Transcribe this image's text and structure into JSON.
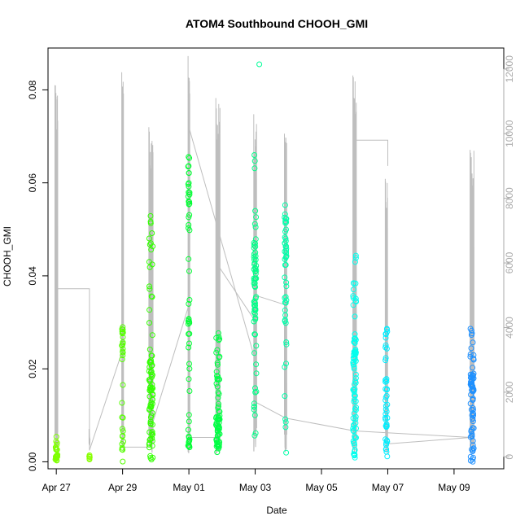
{
  "chart_data": {
    "type": "scatter",
    "title": "ATOM4 Southbound CHOOH_GMI",
    "xlabel": "Date",
    "ylabel": "CHOOH_GMI",
    "x_axis": {
      "kind": "date",
      "range": [
        "2017-04-26T18:00",
        "2017-05-10T12:00"
      ],
      "ticks": [
        {
          "date": "2017-04-27",
          "label": "Apr 27"
        },
        {
          "date": "2017-04-29",
          "label": "Apr 29"
        },
        {
          "date": "2017-05-01",
          "label": "May 01"
        },
        {
          "date": "2017-05-03",
          "label": "May 03"
        },
        {
          "date": "2017-05-05",
          "label": "May 05"
        },
        {
          "date": "2017-05-07",
          "label": "May 07"
        },
        {
          "date": "2017-05-09",
          "label": "May 09"
        }
      ]
    },
    "y_axis": {
      "range": [
        -0.0015,
        0.089
      ],
      "ticks": [
        {
          "value": 0.0,
          "label": "0.00"
        },
        {
          "value": 0.02,
          "label": "0.02"
        },
        {
          "value": 0.04,
          "label": "0.04"
        },
        {
          "value": 0.06,
          "label": "0.06"
        },
        {
          "value": 0.08,
          "label": "0.08"
        }
      ]
    },
    "y2_axis": {
      "description": "altitude (unlabeled), drawn as grey line",
      "range": [
        -370,
        12650
      ],
      "ticks": [
        {
          "value": 0,
          "label": "0"
        },
        {
          "value": 2000,
          "label": "2000"
        },
        {
          "value": 4000,
          "label": "4000"
        },
        {
          "value": 6000,
          "label": "6000"
        },
        {
          "value": 8000,
          "label": "8000"
        },
        {
          "value": 10000,
          "label": "10000"
        },
        {
          "value": 12000,
          "label": "12000"
        }
      ]
    },
    "grid": false,
    "point_symbol": "open-circle",
    "colors": {
      "altitude_line": "#bebebe",
      "right_axis": "#aaaaaa",
      "axis": "#000000"
    },
    "flights": [
      {
        "time": "2017-04-27T00:00",
        "width_h": 2.0,
        "color": "#7fff00",
        "center": 0.0015,
        "ranges": [
          [
            0.0,
            0.003,
            18
          ],
          [
            0.003,
            0.008,
            6
          ]
        ],
        "peak_alt": 11500
      },
      {
        "time": "2017-04-28T00:00",
        "width_h": 0.6,
        "color": "#88ff00",
        "center": 0.001,
        "ranges": [
          [
            0.0005,
            0.0015,
            6
          ]
        ],
        "peak_alt": 400
      },
      {
        "time": "2017-04-29T00:00",
        "width_h": 1.2,
        "color": "#55ff00",
        "center": 0.025,
        "ranges": [
          [
            0.022,
            0.029,
            18
          ],
          [
            0.0,
            0.008,
            10
          ],
          [
            0.008,
            0.02,
            4
          ]
        ],
        "peak_alt": 11900
      },
      {
        "time": "2017-04-29T20:30",
        "width_h": 3.0,
        "color": "#33ff00",
        "center": 0.01,
        "ranges": [
          [
            0.0,
            0.02,
            50
          ],
          [
            0.015,
            0.023,
            14
          ],
          [
            0.035,
            0.053,
            16
          ],
          [
            0.02,
            0.035,
            6
          ]
        ],
        "peak_alt": 10200
      },
      {
        "time": "2017-05-01T00:00",
        "width_h": 1.2,
        "color": "#00ff33",
        "center": 0.035,
        "ranges": [
          [
            0.055,
            0.066,
            16
          ],
          [
            0.003,
            0.06,
            30
          ],
          [
            0.003,
            0.006,
            8
          ]
        ],
        "peak_alt": 12400
      },
      {
        "time": "2017-05-01T21:00",
        "width_h": 3.0,
        "color": "#00ff44",
        "center": 0.004,
        "ranges": [
          [
            0.002,
            0.01,
            40
          ],
          [
            0.01,
            0.028,
            22
          ],
          [
            0.0,
            0.02,
            8
          ]
        ],
        "peak_alt": 11100
      },
      {
        "time": "2017-05-03T00:00",
        "width_h": 2.0,
        "color": "#00ff88",
        "center": 0.037,
        "ranges": [
          [
            0.03,
            0.046,
            40
          ],
          [
            0.046,
            0.055,
            10
          ],
          [
            0.005,
            0.03,
            16
          ],
          [
            0.06,
            0.068,
            3
          ]
        ],
        "peak_alt": 10600
      },
      {
        "time": "2017-05-03T22:00",
        "width_h": 1.6,
        "color": "#00ffaa",
        "center": 0.04,
        "ranges": [
          [
            0.045,
            0.056,
            20
          ],
          [
            0.02,
            0.045,
            24
          ],
          [
            0.001,
            0.015,
            5
          ]
        ],
        "peak_alt": 10000
      },
      {
        "time": "2017-05-06T00:00",
        "width_h": 2.5,
        "color": "#00ffee",
        "center": 0.022,
        "ranges": [
          [
            0.018,
            0.028,
            30
          ],
          [
            0.0,
            0.018,
            40
          ],
          [
            0.03,
            0.046,
            14
          ]
        ],
        "peak_alt": 11800
      },
      {
        "time": "2017-05-06T23:00",
        "width_h": 1.6,
        "color": "#00eeff",
        "center": 0.02,
        "ranges": [
          [
            0.0,
            0.015,
            25
          ],
          [
            0.015,
            0.03,
            20
          ]
        ],
        "peak_alt": 8600
      },
      {
        "time": "2017-05-09T13:00",
        "width_h": 2.8,
        "color": "#1e90ff",
        "center": 0.018,
        "ranges": [
          [
            0.015,
            0.019,
            25
          ],
          [
            0.0,
            0.015,
            35
          ],
          [
            0.02,
            0.03,
            12
          ]
        ],
        "peak_alt": 9500
      }
    ],
    "extra_points": [
      {
        "time": "2017-05-03T03:00",
        "y": 0.0855,
        "color": "#00ff99"
      }
    ],
    "ferry_segments": [
      [
        [
          "2017-04-27T00:00",
          300
        ],
        [
          "2017-04-27T00:00",
          5200
        ],
        [
          "2017-04-28T00:00",
          5200
        ],
        [
          "2017-04-28T00:00",
          200
        ]
      ],
      [
        [
          "2017-04-28T00:00",
          200
        ],
        [
          "2017-04-29T00:00",
          3300
        ]
      ],
      [
        [
          "2017-04-29T00:00",
          300
        ],
        [
          "2017-04-29T20:00",
          300
        ]
      ],
      [
        [
          "2017-04-29T20:00",
          800
        ],
        [
          "2017-05-01T00:00",
          4700
        ]
      ],
      [
        [
          "2017-05-01T00:00",
          600
        ],
        [
          "2017-05-01T20:00",
          600
        ]
      ],
      [
        [
          "2017-05-01T20:00",
          6000
        ],
        [
          "2017-05-03T00:00",
          4200
        ]
      ],
      [
        [
          "2017-05-01T00:00",
          10200
        ],
        [
          "2017-05-03T00:00",
          3000
        ]
      ],
      [
        [
          "2017-05-03T00:00",
          1700
        ],
        [
          "2017-05-03T22:00",
          1200
        ]
      ],
      [
        [
          "2017-05-03T00:00",
          5000
        ],
        [
          "2017-05-03T22:00",
          4700
        ]
      ],
      [
        [
          "2017-05-03T22:00",
          1200
        ],
        [
          "2017-05-06T00:00",
          800
        ]
      ],
      [
        [
          "2017-05-06T00:00",
          9800
        ],
        [
          "2017-05-07T00:00",
          9800
        ],
        [
          "2017-05-07T00:00",
          9000
        ]
      ],
      [
        [
          "2017-05-06T00:00",
          800
        ],
        [
          "2017-05-09T12:00",
          600
        ]
      ],
      [
        [
          "2017-05-07T00:00",
          400
        ],
        [
          "2017-05-09T12:00",
          600
        ]
      ]
    ]
  }
}
